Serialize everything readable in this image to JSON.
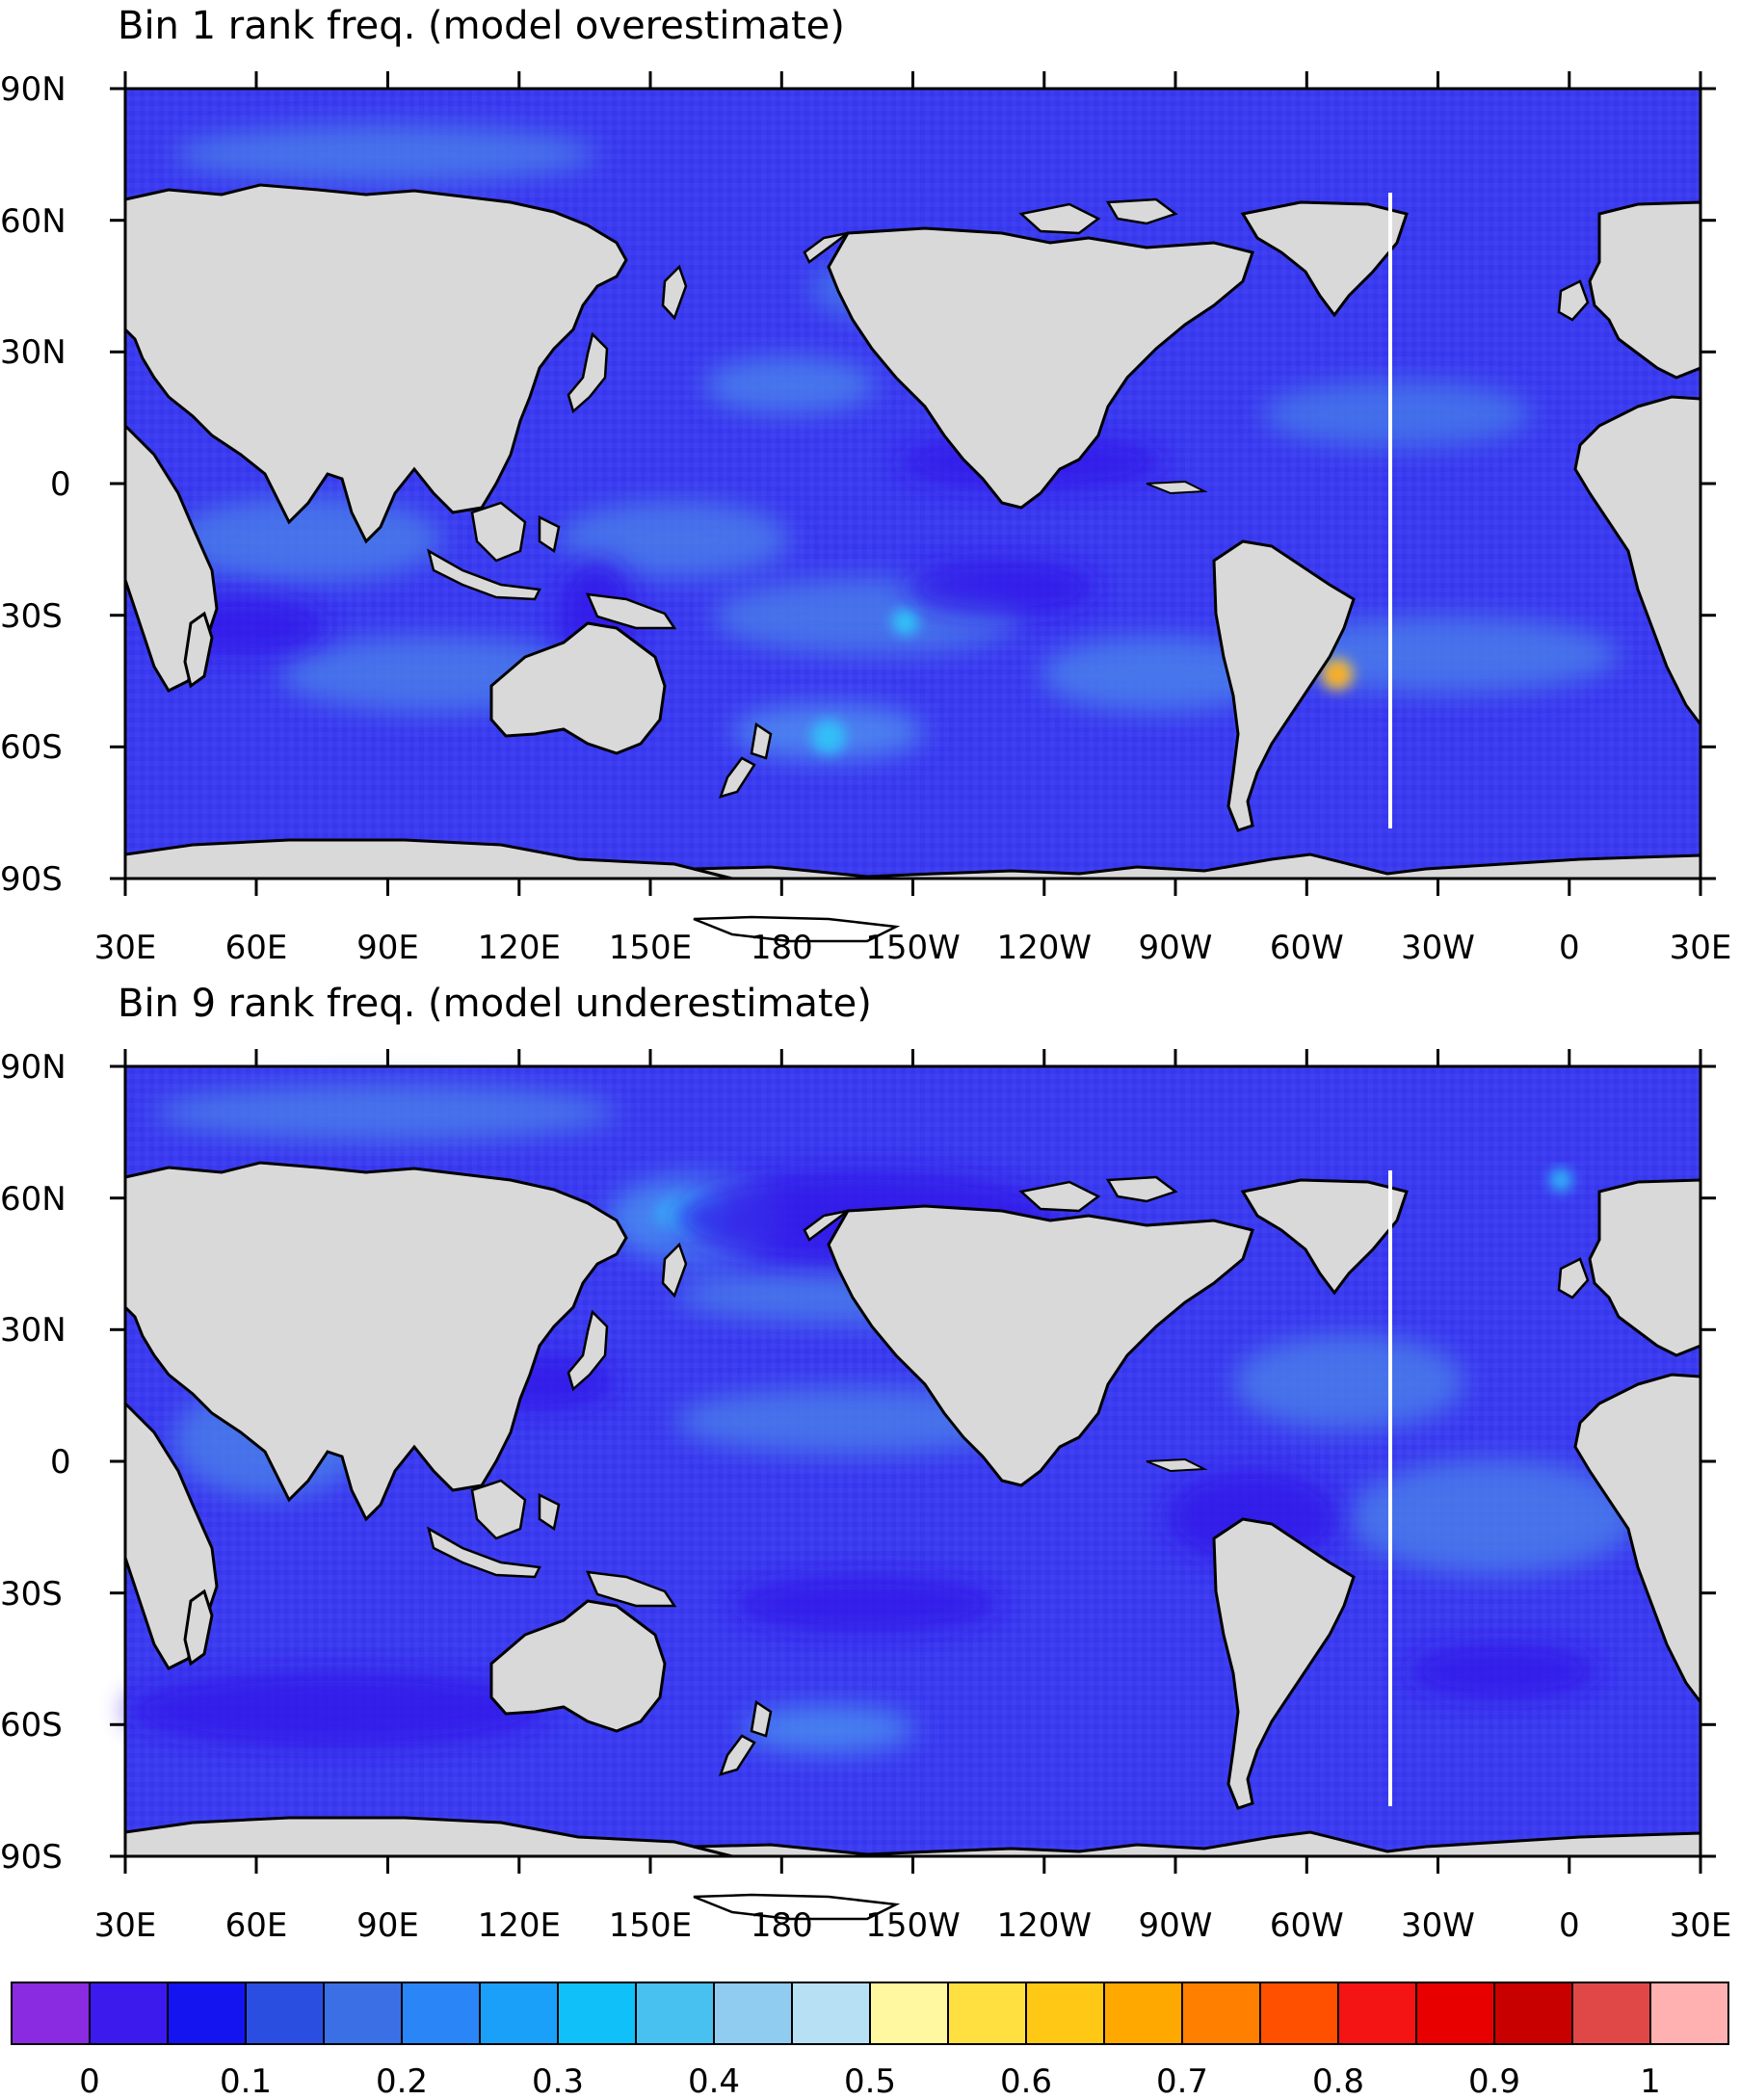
{
  "panels": [
    {
      "title": "Bin 1 rank freq. (model overestimate)",
      "lat_labels": [
        "90N",
        "60N",
        "30N",
        "0",
        "30S",
        "60S",
        "90S"
      ],
      "lon_labels": [
        "30E",
        "60E",
        "90E",
        "120E",
        "150E",
        "180",
        "150W",
        "120W",
        "90W",
        "60W",
        "30W",
        "0",
        "30E"
      ]
    },
    {
      "title": "Bin 9 rank freq. (model underestimate)",
      "lat_labels": [
        "90N",
        "60N",
        "30N",
        "0",
        "30S",
        "60S",
        "90S"
      ],
      "lon_labels": [
        "30E",
        "60E",
        "90E",
        "120E",
        "150E",
        "180",
        "150W",
        "120W",
        "90W",
        "60W",
        "30W",
        "0",
        "30E"
      ]
    }
  ],
  "colorbar": {
    "colors": [
      "#8a2be2",
      "#3c1aee",
      "#1414f0",
      "#2a4fe0",
      "#3a6fe6",
      "#2a86f6",
      "#1aa0f8",
      "#10c0f8",
      "#48c0f0",
      "#90ccf0",
      "#b8e0f4",
      "#fff8a0",
      "#ffe040",
      "#ffc814",
      "#ffa800",
      "#ff8000",
      "#ff5000",
      "#f41414",
      "#e80000",
      "#c80000",
      "#e04848",
      "#ffb0b0"
    ],
    "labels": [
      "0",
      "0.1",
      "0.2",
      "0.3",
      "0.4",
      "0.5",
      "0.6",
      "0.7",
      "0.8",
      "0.9",
      "1"
    ]
  },
  "palette": {
    "ocean": "#3c3cf0",
    "ocean_light": "#3c6fe8",
    "land": "#d9d9d9",
    "coast": "#000000"
  }
}
